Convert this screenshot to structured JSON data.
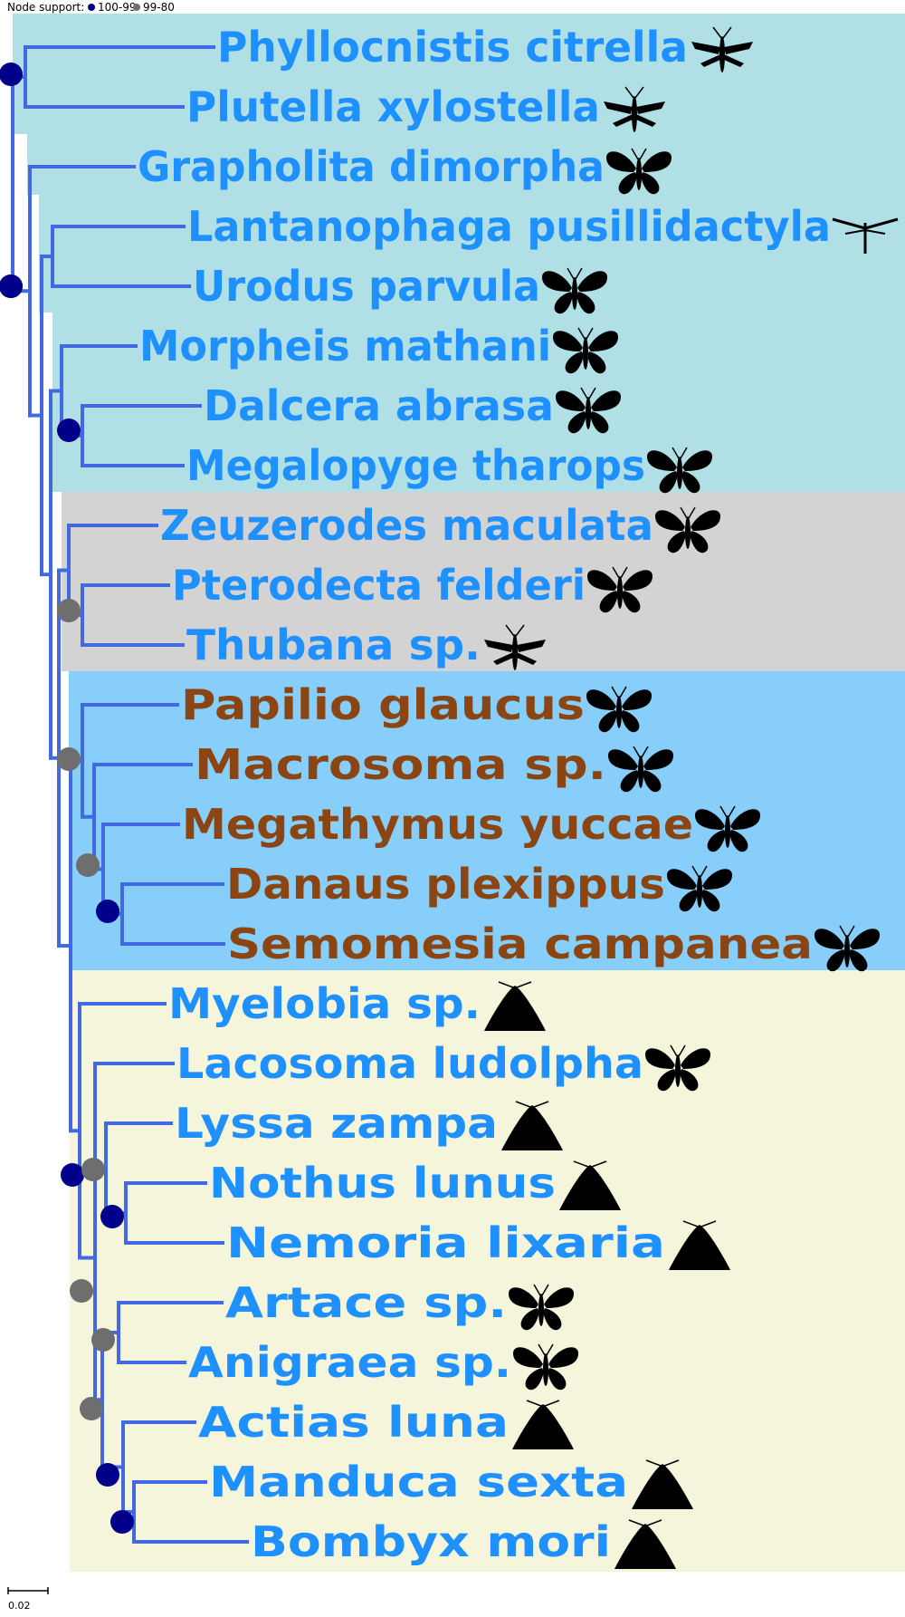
{
  "legend": {
    "title": "Node support:",
    "items": [
      {
        "label": "100-99",
        "color": "#00008B"
      },
      {
        "label": "99-80",
        "color": "#6E6E6E"
      }
    ]
  },
  "scale_bar": {
    "label": "0.02"
  },
  "colors": {
    "branch": "#4169E1",
    "text_blue": "#1E90FF",
    "text_brown": "#8B4513",
    "silhouette": "#000000"
  },
  "clade_backgrounds": [
    {
      "name": "clade-cyan",
      "color": "#B0DFE5"
    },
    {
      "name": "clade-gray",
      "color": "#D3D3D3"
    },
    {
      "name": "clade-lightblue",
      "color": "#87CEFA"
    },
    {
      "name": "clade-beige",
      "color": "#F5F5DC"
    }
  ],
  "taxa": [
    {
      "name": "Phyllocnistis citrella",
      "color": "#1E90FF",
      "icon": "moth-slender-icon"
    },
    {
      "name": "Plutella xylostella",
      "color": "#1E90FF",
      "icon": "moth-slender-icon"
    },
    {
      "name": "Grapholita dimorpha",
      "color": "#1E90FF",
      "icon": "moth-icon"
    },
    {
      "name": "Lantanophaga pusillidactyla",
      "color": "#1E90FF",
      "icon": "plume-moth-icon"
    },
    {
      "name": "Urodus parvula",
      "color": "#1E90FF",
      "icon": "moth-icon"
    },
    {
      "name": "Morpheis mathani",
      "color": "#1E90FF",
      "icon": "moth-icon"
    },
    {
      "name": "Dalcera abrasa",
      "color": "#1E90FF",
      "icon": "moth-icon"
    },
    {
      "name": "Megalopyge tharops",
      "color": "#1E90FF",
      "icon": "moth-icon"
    },
    {
      "name": "Zeuzerodes maculata",
      "color": "#1E90FF",
      "icon": "moth-icon"
    },
    {
      "name": "Pterodecta felderi",
      "color": "#1E90FF",
      "icon": "moth-icon"
    },
    {
      "name": "Thubana sp.",
      "color": "#1E90FF",
      "icon": "moth-slender-icon"
    },
    {
      "name": "Papilio glaucus",
      "color": "#8B4513",
      "icon": "butterfly-icon"
    },
    {
      "name": "Macrosoma sp.",
      "color": "#8B4513",
      "icon": "butterfly-icon"
    },
    {
      "name": "Megathymus yuccae",
      "color": "#8B4513",
      "icon": "butterfly-icon"
    },
    {
      "name": "Danaus plexippus",
      "color": "#8B4513",
      "icon": "butterfly-icon"
    },
    {
      "name": "Semomesia campanea",
      "color": "#8B4513",
      "icon": "butterfly-icon"
    },
    {
      "name": "Myelobia sp.",
      "color": "#1E90FF",
      "icon": "moth-resting-icon"
    },
    {
      "name": "Lacosoma ludolpha",
      "color": "#1E90FF",
      "icon": "moth-icon"
    },
    {
      "name": "Lyssa zampa",
      "color": "#1E90FF",
      "icon": "moth-resting-icon"
    },
    {
      "name": "Nothus lunus",
      "color": "#1E90FF",
      "icon": "moth-resting-icon"
    },
    {
      "name": "Nemoria lixaria",
      "color": "#1E90FF",
      "icon": "moth-resting-icon"
    },
    {
      "name": "Artace sp.",
      "color": "#1E90FF",
      "icon": "moth-icon"
    },
    {
      "name": "Anigraea sp.",
      "color": "#1E90FF",
      "icon": "moth-icon"
    },
    {
      "name": "Actias luna",
      "color": "#1E90FF",
      "icon": "moth-resting-icon"
    },
    {
      "name": "Manduca sexta",
      "color": "#1E90FF",
      "icon": "moth-resting-icon"
    },
    {
      "name": "Bombyx mori",
      "color": "#1E90FF",
      "icon": "moth-resting-icon"
    }
  ],
  "nodes": [
    {
      "name": "node-root",
      "support": "100-99"
    },
    {
      "name": "node-phyllocnistis-plutella",
      "support": "100-99"
    },
    {
      "name": "node-lantanophaga-urodus",
      "support": "100-99"
    },
    {
      "name": "node-dalcera-megalopyge",
      "support": "100-99"
    },
    {
      "name": "node-pterodecta-thubana",
      "support": "99-80"
    },
    {
      "name": "node-butterflies",
      "support": "99-80"
    },
    {
      "name": "node-megathymus-danaus-semomesia",
      "support": "99-80"
    },
    {
      "name": "node-danaus-semomesia",
      "support": "100-99"
    },
    {
      "name": "node-macroheterocera",
      "support": "100-99"
    },
    {
      "name": "node-lacosoma-group",
      "support": "99-80"
    },
    {
      "name": "node-nothus-nemoria",
      "support": "100-99"
    },
    {
      "name": "node-bombycoid-group",
      "support": "99-80"
    },
    {
      "name": "node-artace-anigraea",
      "support": "99-80"
    },
    {
      "name": "node-actias-group",
      "support": "99-80"
    },
    {
      "name": "node-actias-manduca-bombyx",
      "support": "100-99"
    },
    {
      "name": "node-manduca-bombyx",
      "support": "100-99"
    }
  ]
}
